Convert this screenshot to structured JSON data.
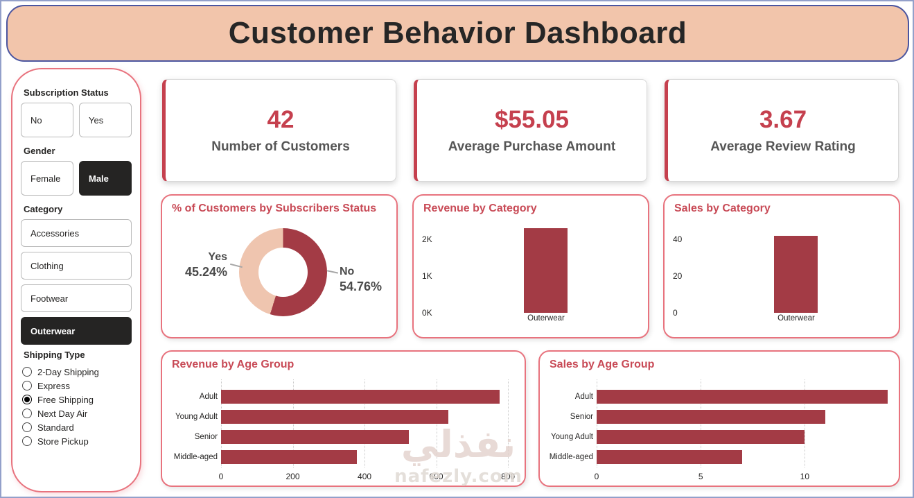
{
  "header": {
    "title": "Customer Behavior Dashboard"
  },
  "sidebar": {
    "subscription_status": {
      "label": "Subscription Status",
      "options": [
        {
          "label": "No",
          "selected": false
        },
        {
          "label": "Yes",
          "selected": false
        }
      ]
    },
    "gender": {
      "label": "Gender",
      "options": [
        {
          "label": "Female",
          "selected": false
        },
        {
          "label": "Male",
          "selected": true
        }
      ]
    },
    "category": {
      "label": "Category",
      "options": [
        {
          "label": "Accessories",
          "selected": false
        },
        {
          "label": "Clothing",
          "selected": false
        },
        {
          "label": "Footwear",
          "selected": false
        },
        {
          "label": "Outerwear",
          "selected": true
        }
      ]
    },
    "shipping_type": {
      "label": "Shipping Type",
      "options": [
        {
          "label": "2-Day Shipping",
          "selected": false
        },
        {
          "label": "Express",
          "selected": false
        },
        {
          "label": "Free Shipping",
          "selected": true
        },
        {
          "label": "Next Day Air",
          "selected": false
        },
        {
          "label": "Standard",
          "selected": false
        },
        {
          "label": "Store Pickup",
          "selected": false
        }
      ]
    }
  },
  "kpis": [
    {
      "value": "42",
      "label": "Number of Customers"
    },
    {
      "value": "$55.05",
      "label": "Average Purchase Amount"
    },
    {
      "value": "3.67",
      "label": "Average Review Rating"
    }
  ],
  "colors": {
    "header_bg": "#F2C5AB",
    "header_border": "#4A55A0",
    "card_border_pink": "#E8737E",
    "accent_red": "#C5404E",
    "title_red": "#C84A56",
    "bar_dark_red": "#A33B45",
    "donut_light_peach": "#EFC5AF",
    "selected_button": "#252423"
  },
  "watermark": {
    "arabic": "نفذلي",
    "domain": "nafezly.com"
  },
  "chart_data": [
    {
      "id": "subscribers-donut",
      "type": "pie",
      "title": "% of Customers by Subscribers Status",
      "slices": [
        {
          "label": "No",
          "value": 54.76,
          "display": "54.76%",
          "color": "#A33B45"
        },
        {
          "label": "Yes",
          "value": 45.24,
          "display": "45.24%",
          "color": "#EFC5AF"
        }
      ],
      "legend_position": "callout-labels"
    },
    {
      "id": "revenue-by-category",
      "type": "bar",
      "title": "Revenue by Category",
      "categories": [
        "Outerwear"
      ],
      "values": [
        2312
      ],
      "bar_color": "#A33B45",
      "yticks": [
        {
          "value": 0,
          "label": "0K"
        },
        {
          "value": 1000,
          "label": "1K"
        },
        {
          "value": 2000,
          "label": "2K"
        }
      ],
      "ylim": [
        0,
        2350
      ],
      "grid": false
    },
    {
      "id": "sales-by-category",
      "type": "bar",
      "title": "Sales by Category",
      "categories": [
        "Outerwear"
      ],
      "values": [
        42
      ],
      "bar_color": "#A33B45",
      "yticks": [
        {
          "value": 0,
          "label": "0"
        },
        {
          "value": 20,
          "label": "20"
        },
        {
          "value": 40,
          "label": "40"
        }
      ],
      "ylim": [
        0,
        47
      ],
      "grid": false
    },
    {
      "id": "revenue-by-age",
      "type": "hbar",
      "title": "Revenue by Age Group",
      "categories": [
        "Adult",
        "Young Adult",
        "Senior",
        "Middle-aged"
      ],
      "values": [
        777,
        634,
        523,
        378
      ],
      "bar_color": "#A33B45",
      "xticks": [
        0,
        200,
        400,
        600,
        800
      ],
      "xlim": [
        0,
        823
      ],
      "grid": true
    },
    {
      "id": "sales-by-age",
      "type": "hbar",
      "title": "Sales by Age Group",
      "categories": [
        "Adult",
        "Senior",
        "Young Adult",
        "Middle-aged"
      ],
      "values": [
        14,
        11,
        10,
        7
      ],
      "bar_color": "#A33B45",
      "xticks": [
        0,
        5,
        10
      ],
      "xlim": [
        0,
        14.25
      ],
      "grid": true
    }
  ]
}
